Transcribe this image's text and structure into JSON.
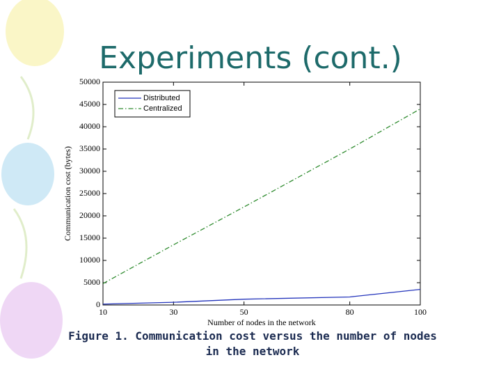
{
  "title": "Experiments (cont.)",
  "caption": "Figure 1. Communication cost versus the number of nodes in the network",
  "chart_data": {
    "type": "line",
    "xlabel": "Number of nodes in the network",
    "ylabel": "Communication cost (bytes)",
    "x": [
      10,
      30,
      50,
      80,
      100
    ],
    "series": [
      {
        "name": "Distributed",
        "color": "#2233bb",
        "linestyle": "solid",
        "values": [
          200,
          600,
          1300,
          1800,
          3500
        ]
      },
      {
        "name": "Centralized",
        "color": "#2e8b2e",
        "linestyle": "dashdot",
        "values": [
          4800,
          13500,
          22000,
          35000,
          44000
        ]
      }
    ],
    "xlim": [
      10,
      100
    ],
    "xticks": [
      10,
      30,
      50,
      80,
      100
    ],
    "ylim": [
      0,
      50000
    ],
    "yticks": [
      0,
      5000,
      10000,
      15000,
      20000,
      25000,
      30000,
      35000,
      40000,
      45000,
      50000
    ],
    "legend": "upper left"
  }
}
